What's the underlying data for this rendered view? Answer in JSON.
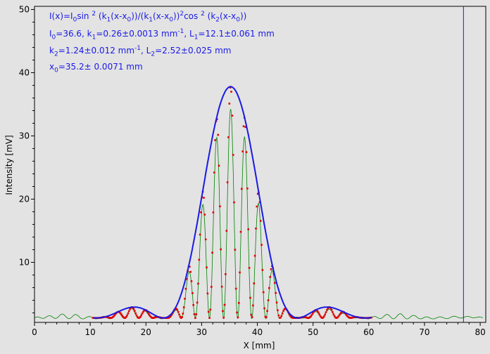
{
  "chart_data": {
    "type": "scatter",
    "xlabel": "X [mm]",
    "ylabel": "Intensity [mV]",
    "xlim": [
      0,
      81
    ],
    "ylim": [
      0.5,
      50.5
    ],
    "x_ticks": [
      0,
      10,
      20,
      30,
      40,
      50,
      60,
      70,
      80
    ],
    "y_ticks": [
      10,
      20,
      30,
      40,
      50
    ],
    "x_tick_labels": [
      "0",
      "10",
      "20",
      "30",
      "40",
      "50",
      "60",
      "70",
      "80"
    ],
    "y_tick_labels": [
      "10",
      "20",
      "30",
      "40",
      "50"
    ],
    "grid": false,
    "marker_line_x": 77,
    "fit": {
      "I0": 36.6,
      "k1": 0.26,
      "L1": 12.1,
      "k2": 1.24,
      "L2": 2.52,
      "x0": 35.2,
      "x_range": [
        10.5,
        60.5
      ],
      "baseline": 1.2
    },
    "annotations": {
      "formula": "I(x)=I0sin 2 (k1(x-x0))/(k1(x-x0))2cos 2 (k2(x-x0))",
      "line1": "I0=36.6,  k1=0.26±0.0013 mm-1,   L1=12.1±0.061 mm",
      "line2": "k2=1.24±0.012 mm-1,   L2=2.52±0.025 mm",
      "line3": "x0=35.2±  0.0071 mm"
    },
    "series": [
      {
        "type": "line",
        "color": "#1a1ae6",
        "description_key": "fit"
      },
      {
        "type": "scatter",
        "color": "#e00000",
        "description_key": "measured"
      },
      {
        "type": "line",
        "color": "#008000",
        "description_key": "raw"
      }
    ]
  },
  "annotation_parts": {
    "formula": {
      "a": "I(x)=I",
      "b": "0",
      "c": "sin ",
      "d": "2",
      "e": " (k",
      "f": "1",
      "g": "(x-x",
      "h": "0",
      "i": "))/(k",
      "j": "1",
      "k": "(x-x",
      "l": "0",
      "m": "))",
      "n": "2",
      "o": "cos ",
      "p": "2",
      "q": " (k",
      "r": "2",
      "s": "(x-x",
      "t": "0",
      "u": "))"
    },
    "line1": {
      "a": "I",
      "b": "0",
      "c": "=36.6,  k",
      "d": "1",
      "e": "=0.26±0.0013 mm",
      "f": "-1",
      "g": ",   L",
      "h": "1",
      "i": "=12.1±0.061 mm"
    },
    "line2": {
      "a": "k",
      "b": "2",
      "c": "=1.24±0.012 mm",
      "d": "-1",
      "e": ",   L",
      "f": "2",
      "g": "=2.52±0.025 mm"
    },
    "line3": {
      "a": "x",
      "b": "0",
      "c": "=35.2±  0.0071 mm"
    }
  },
  "colors": {
    "fit": "#1a1ae6",
    "measured": "#e00000",
    "raw": "#008000",
    "marker_line": "#1a1ae6",
    "background": "#e3e3e3"
  }
}
